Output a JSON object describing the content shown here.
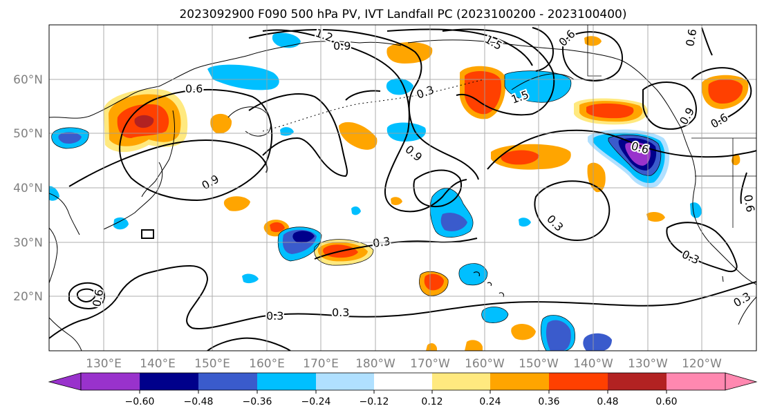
{
  "title": "2023092900 F090 500 hPa PV, IVT Landfall PC (2023100200 - 2023100400)",
  "map": {
    "lat_labels": [
      "60°N",
      "50°N",
      "40°N",
      "30°N",
      "20°N"
    ],
    "lon_labels": [
      "130°E",
      "140°E",
      "150°E",
      "160°E",
      "170°E",
      "180°W",
      "170°W",
      "160°W",
      "150°W",
      "140°W",
      "130°W",
      "120°W"
    ],
    "contour_labels": [
      "1.2",
      "0.9",
      "1.5",
      "0.6",
      "0.3",
      "1.5",
      "0.6",
      "0.9",
      "0.6",
      "0.9",
      "0.6",
      "0.9",
      "0.3",
      "0.3",
      "0.3",
      "0.3",
      "0.6",
      "0.3",
      "0.3",
      "0.6",
      "0.6"
    ]
  },
  "colorbar": {
    "ticks": [
      "−0.60",
      "−0.48",
      "−0.36",
      "−0.24",
      "−0.12",
      "0.12",
      "0.24",
      "0.36",
      "0.48",
      "0.60"
    ],
    "colors": [
      "#9932CC",
      "#00008B",
      "#3A5BCC",
      "#00BFFF",
      "#B0E0FF",
      "#FFFFFF",
      "#FFE97F",
      "#FFA500",
      "#FF4000",
      "#B22222",
      "#FF88B0"
    ]
  },
  "shading_colors": {
    "neg_light": "#B0E0FF",
    "neg_1": "#00BFFF",
    "neg_2": "#3A5BCC",
    "neg_3": "#00008B",
    "neg_4": "#9932CC",
    "pos_light": "#FFE97F",
    "pos_1": "#FFA500",
    "pos_2": "#FF4000",
    "pos_3": "#B22222"
  }
}
